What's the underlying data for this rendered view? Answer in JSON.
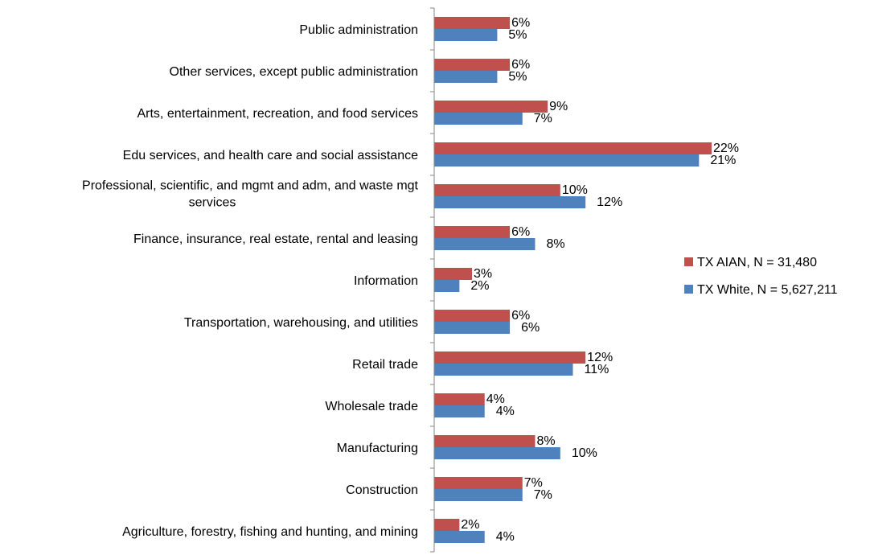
{
  "chart_data": {
    "type": "bar",
    "orientation": "horizontal",
    "categories": [
      [
        "Public administration"
      ],
      [
        "Other services, except public administration"
      ],
      [
        "Arts, entertainment,  recreation, and food services"
      ],
      [
        "Edu services, and health care and social assistance"
      ],
      [
        "Professional, scientific, and mgmt and adm, and waste mgt",
        "services"
      ],
      [
        "Finance, insurance, real estate, rental and leasing"
      ],
      [
        "Information"
      ],
      [
        "Transportation, warehousing, and utilities"
      ],
      [
        "Retail trade"
      ],
      [
        "Wholesale trade"
      ],
      [
        "Manufacturing"
      ],
      [
        "Construction"
      ],
      [
        "Agriculture, forestry, fishing and hunting, and mining"
      ]
    ],
    "series": [
      {
        "name": "TX AIAN, N = 31,480",
        "color": "#C0504D",
        "values": [
          6,
          6,
          9,
          22,
          10,
          6,
          3,
          6,
          12,
          4,
          8,
          7,
          2
        ],
        "labels": [
          "6%",
          "6%",
          "9%",
          "22%",
          "10%",
          "6%",
          "3%",
          "6%",
          "12%",
          "4%",
          "8%",
          "7%",
          "2%"
        ]
      },
      {
        "name": "TX White, N = 5,627,211",
        "color": "#4F81BD",
        "values": [
          5,
          5,
          7,
          21,
          12,
          8,
          2,
          6,
          11,
          4,
          10,
          7,
          4
        ],
        "labels": [
          "5%",
          "5%",
          "7%",
          "21%",
          "12%",
          "8%",
          "2%",
          "6%",
          "11%",
          "4%",
          "10%",
          "7%",
          "4%"
        ]
      }
    ],
    "xlim": [
      0,
      25
    ],
    "grid": false,
    "legend_position": "right"
  }
}
